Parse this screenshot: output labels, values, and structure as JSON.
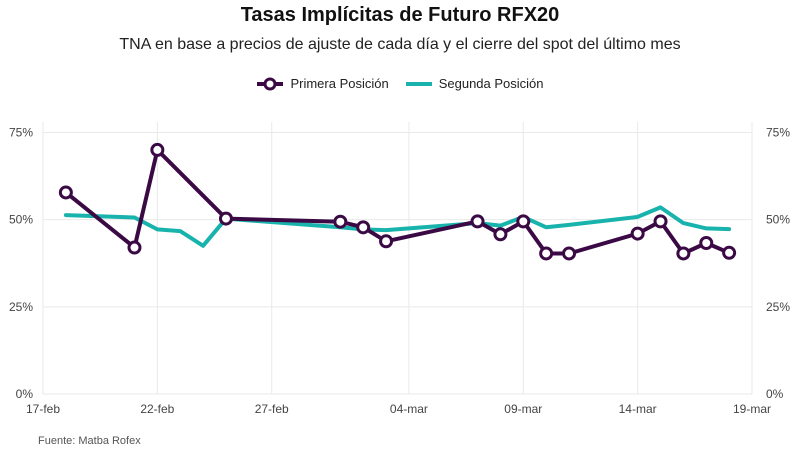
{
  "title": "Tasas Implícitas de Futuro RFX20",
  "subtitle": "TNA en base a precios de ajuste de cada día y el cierre del spot del último mes",
  "source": "Fuente: Matba Rofex",
  "colors": {
    "primera": "#3b0a45",
    "segunda": "#19b3ad",
    "grid": "#e9e9e9",
    "axis_text": "#444444"
  },
  "chart_data": {
    "type": "line",
    "title": "Tasas Implícitas de Futuro RFX20",
    "subtitle": "TNA en base a precios de ajuste de cada día y el cierre del spot del último mes",
    "xlabel": "",
    "ylabel": "",
    "x_ticks": [
      "17-feb",
      "22-feb",
      "27-feb",
      "04-mar",
      "09-mar",
      "14-mar",
      "19-mar"
    ],
    "y_ticks": [
      "0%",
      "25%",
      "50%",
      "75%"
    ],
    "ylim": [
      0,
      0.78
    ],
    "xlim": [
      "2020-02-17",
      "2020-03-19"
    ],
    "grid": true,
    "legend_position": "top",
    "series": [
      {
        "name": "Primera Posición",
        "points": [
          {
            "x": "2020-02-18",
            "y": 0.578
          },
          {
            "x": "2020-02-21",
            "y": 0.42
          },
          {
            "x": "2020-02-22",
            "y": 0.7
          },
          {
            "x": "2020-02-25",
            "y": 0.503
          },
          {
            "x": "2020-03-01",
            "y": 0.494
          },
          {
            "x": "2020-03-02",
            "y": 0.478
          },
          {
            "x": "2020-03-03",
            "y": 0.438
          },
          {
            "x": "2020-03-07",
            "y": 0.495
          },
          {
            "x": "2020-03-08",
            "y": 0.458
          },
          {
            "x": "2020-03-09",
            "y": 0.495
          },
          {
            "x": "2020-03-10",
            "y": 0.403
          },
          {
            "x": "2020-03-11",
            "y": 0.403
          },
          {
            "x": "2020-03-14",
            "y": 0.46
          },
          {
            "x": "2020-03-15",
            "y": 0.495
          },
          {
            "x": "2020-03-16",
            "y": 0.403
          },
          {
            "x": "2020-03-17",
            "y": 0.433
          },
          {
            "x": "2020-03-18",
            "y": 0.405
          }
        ]
      },
      {
        "name": "Segunda Posición",
        "points": [
          {
            "x": "2020-02-18",
            "y": 0.513
          },
          {
            "x": "2020-02-21",
            "y": 0.506
          },
          {
            "x": "2020-02-22",
            "y": 0.472
          },
          {
            "x": "2020-02-23",
            "y": 0.467
          },
          {
            "x": "2020-02-24",
            "y": 0.425
          },
          {
            "x": "2020-02-25",
            "y": 0.503
          },
          {
            "x": "2020-03-01",
            "y": 0.478
          },
          {
            "x": "2020-03-02",
            "y": 0.472
          },
          {
            "x": "2020-03-03",
            "y": 0.47
          },
          {
            "x": "2020-03-07",
            "y": 0.49
          },
          {
            "x": "2020-03-08",
            "y": 0.483
          },
          {
            "x": "2020-03-09",
            "y": 0.508
          },
          {
            "x": "2020-03-10",
            "y": 0.478
          },
          {
            "x": "2020-03-11",
            "y": 0.485
          },
          {
            "x": "2020-03-14",
            "y": 0.508
          },
          {
            "x": "2020-03-15",
            "y": 0.535
          },
          {
            "x": "2020-03-16",
            "y": 0.49
          },
          {
            "x": "2020-03-17",
            "y": 0.475
          },
          {
            "x": "2020-03-18",
            "y": 0.473
          }
        ]
      }
    ]
  }
}
